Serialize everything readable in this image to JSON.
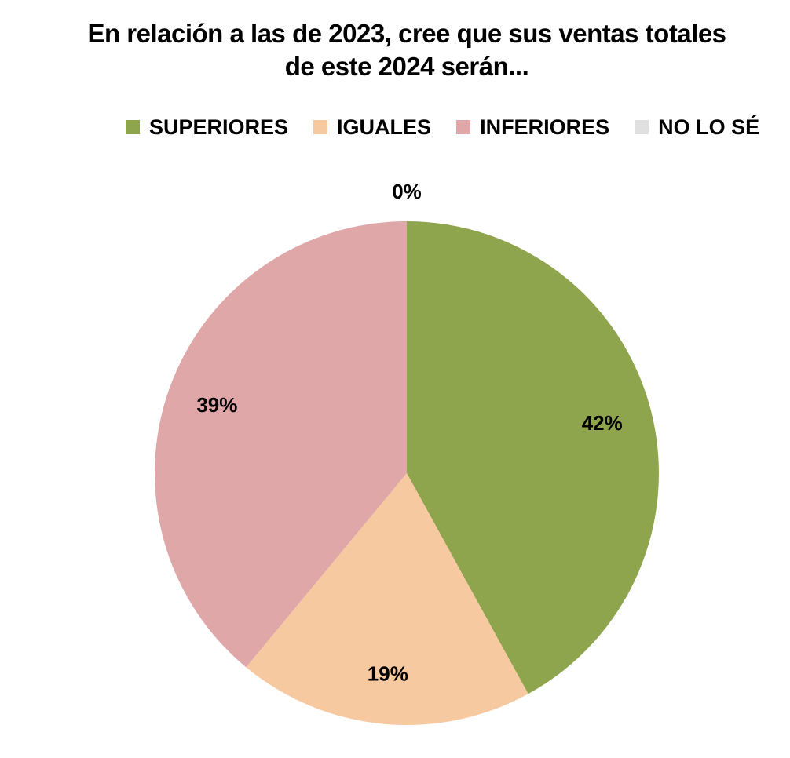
{
  "chart_data": {
    "type": "pie",
    "title_lines": [
      "En relación a las de 2023, cree que sus ventas totales",
      "de este 2024 serán..."
    ],
    "legend_position": "top",
    "start_angle": "12 o'clock, clockwise",
    "slices": [
      {
        "label": "SUPERIORES",
        "value": 42,
        "display": "42%",
        "color": "#8fa54d"
      },
      {
        "label": "IGUALES",
        "value": 19,
        "display": "19%",
        "color": "#f7c9a0"
      },
      {
        "label": "INFERIORES",
        "value": 39,
        "display": "39%",
        "color": "#dfa7a7"
      },
      {
        "label": "NO LO SÉ",
        "value": 0,
        "display": "0%",
        "color": "#e0e0e0"
      }
    ]
  }
}
